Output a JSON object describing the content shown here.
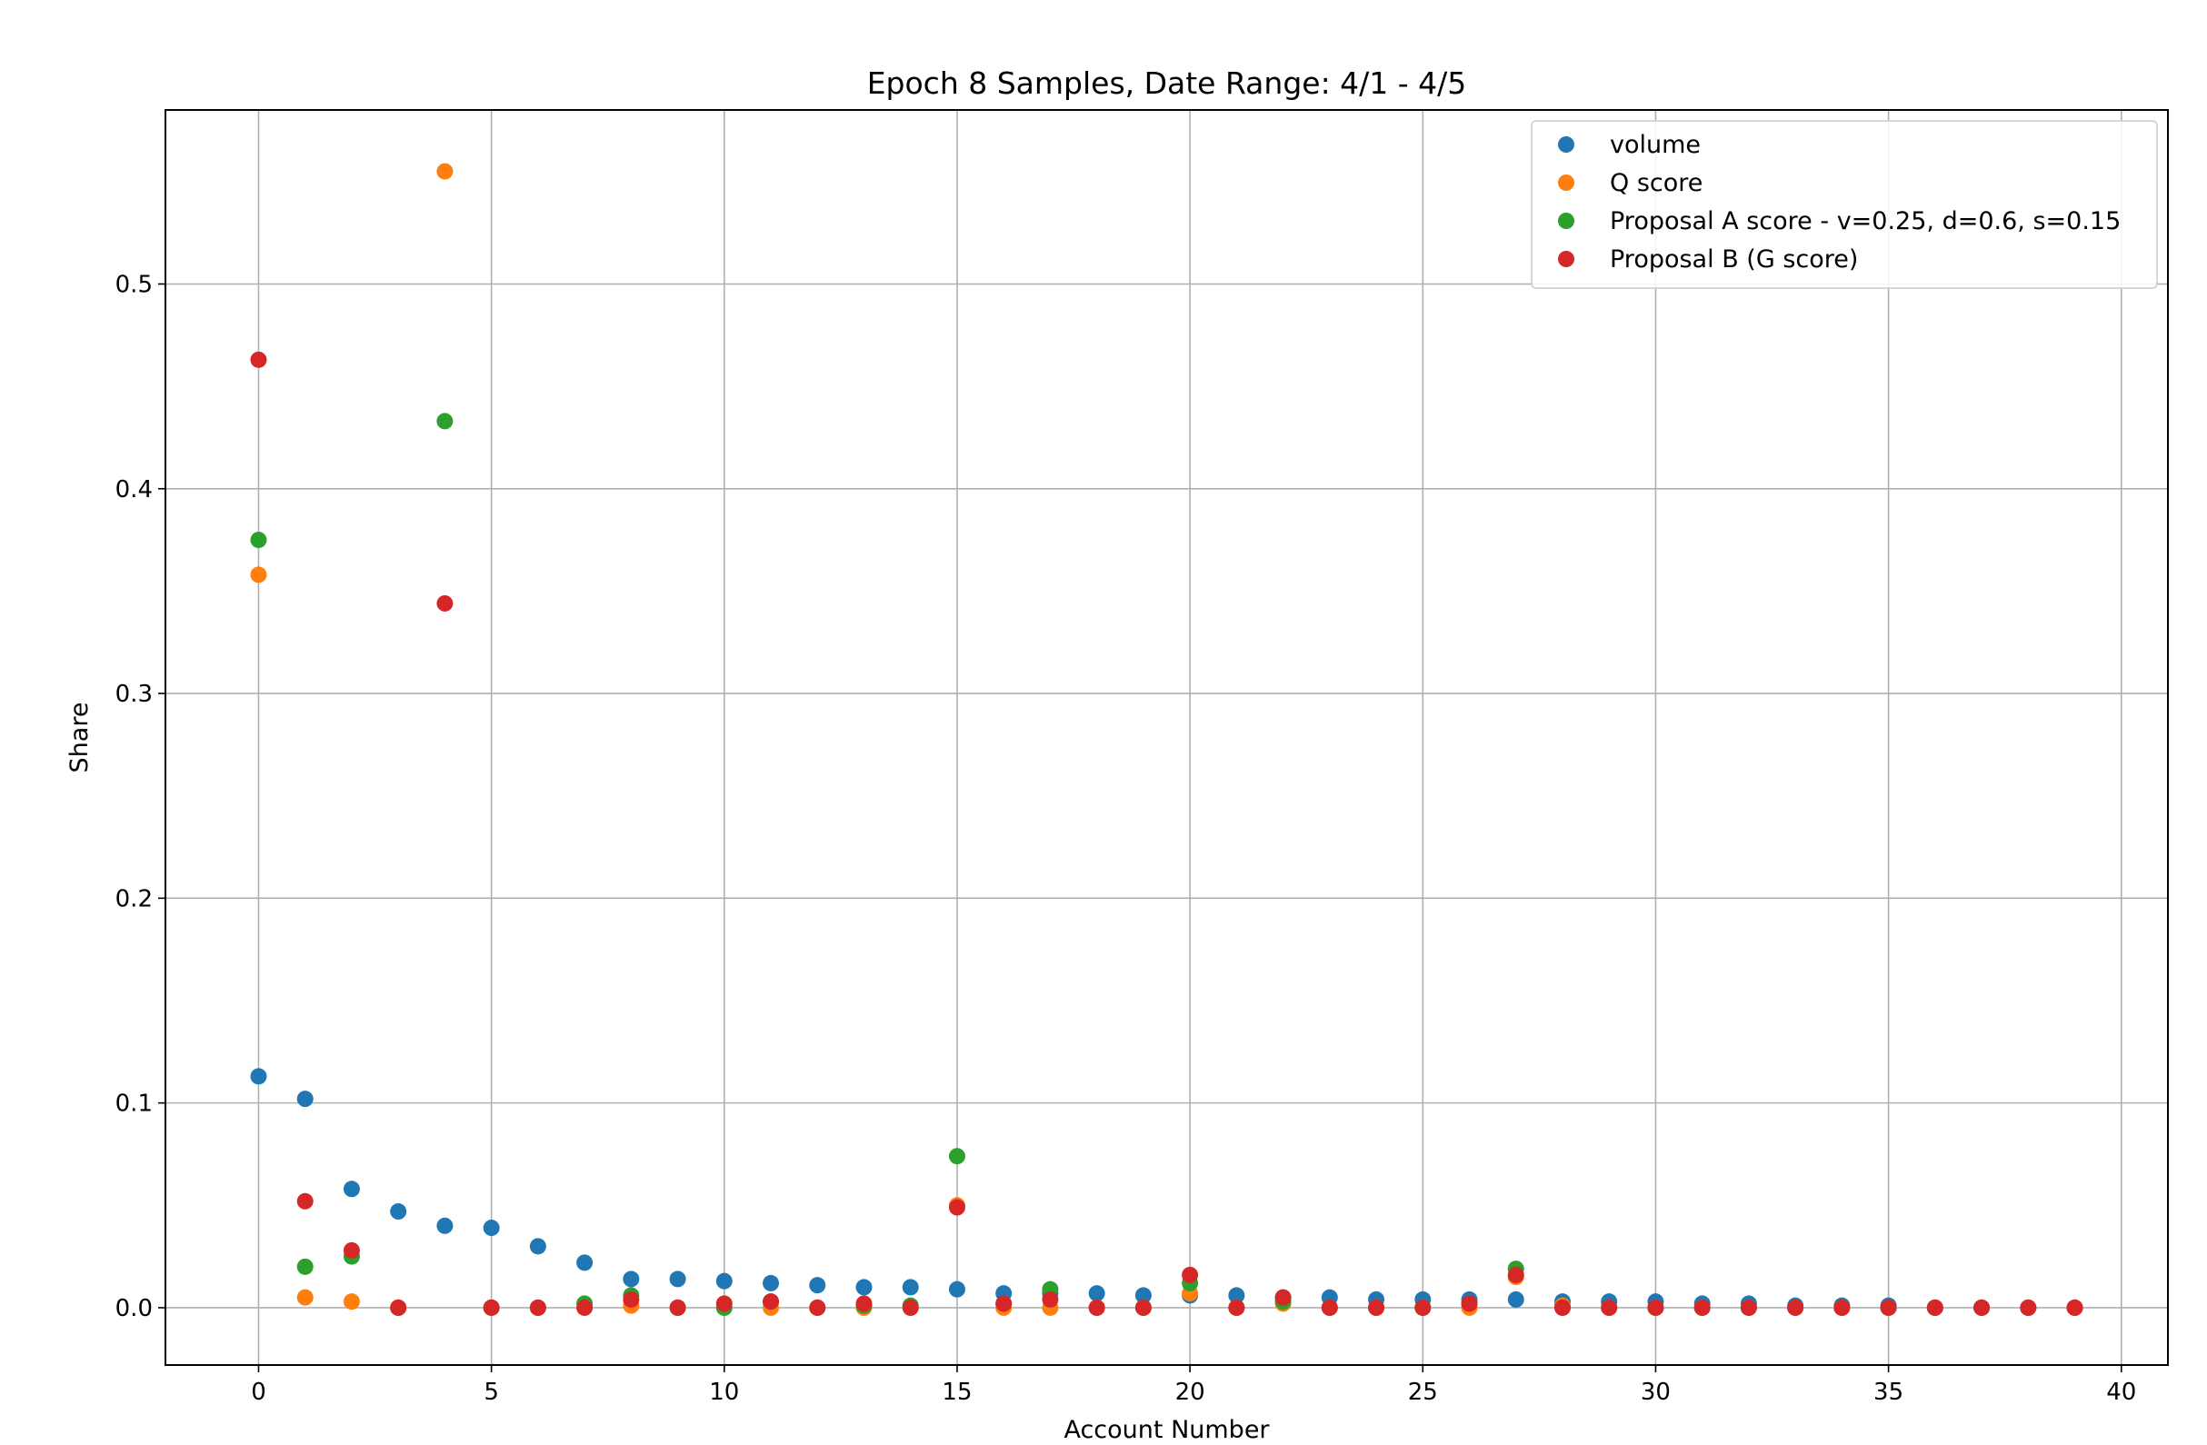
{
  "chart_data": {
    "type": "scatter",
    "title": "Epoch 8 Samples, Date Range: 4/1 - 4/5",
    "xlabel": "Account Number",
    "ylabel": "Share",
    "xlim": [
      -2,
      41
    ],
    "ylim": [
      -0.028,
      0.585
    ],
    "xticks": [
      0,
      5,
      10,
      15,
      20,
      25,
      30,
      35,
      40
    ],
    "xtick_labels": [
      "0",
      "5",
      "10",
      "15",
      "20",
      "25",
      "30",
      "35",
      "40"
    ],
    "yticks": [
      0.0,
      0.1,
      0.2,
      0.3,
      0.4,
      0.5
    ],
    "ytick_labels": [
      "0.0",
      "0.1",
      "0.2",
      "0.3",
      "0.4",
      "0.5"
    ],
    "grid": true,
    "legend_position": "top-right",
    "x": [
      0,
      1,
      2,
      3,
      4,
      5,
      6,
      7,
      8,
      9,
      10,
      11,
      12,
      13,
      14,
      15,
      16,
      17,
      18,
      19,
      20,
      21,
      22,
      23,
      24,
      25,
      26,
      27,
      28,
      29,
      30,
      31,
      32,
      33,
      34,
      35,
      36,
      37,
      38,
      39
    ],
    "series": [
      {
        "name": "volume",
        "color": "#1f77b4",
        "values": [
          0.113,
          0.102,
          0.058,
          0.047,
          0.04,
          0.039,
          0.03,
          0.022,
          0.014,
          0.014,
          0.013,
          0.012,
          0.011,
          0.01,
          0.01,
          0.009,
          0.007,
          0.007,
          0.007,
          0.006,
          0.006,
          0.006,
          0.005,
          0.005,
          0.004,
          0.004,
          0.004,
          0.004,
          0.003,
          0.003,
          0.003,
          0.002,
          0.002,
          0.001,
          0.001,
          0.001,
          0.0,
          0.0,
          0.0,
          0.0
        ]
      },
      {
        "name": "Q score",
        "color": "#ff7f0e",
        "values": [
          0.358,
          0.005,
          0.003,
          0.0,
          0.555,
          0.0,
          0.0,
          0.0,
          0.001,
          0.0,
          0.0,
          0.0,
          0.0,
          0.0,
          0.0,
          0.05,
          0.0,
          0.0,
          0.0,
          0.0,
          0.007,
          0.0,
          0.002,
          0.0,
          0.0,
          0.0,
          0.0,
          0.015,
          0.001,
          0.0,
          0.0,
          0.0,
          0.0,
          0.0,
          0.0,
          0.0,
          0.0,
          0.0,
          0.0,
          0.0
        ]
      },
      {
        "name": "Proposal A score - v=0.25, d=0.6, s=0.15",
        "color": "#2ca02c",
        "values": [
          0.375,
          0.02,
          0.025,
          0.0,
          0.433,
          0.0,
          0.0,
          0.002,
          0.006,
          0.0,
          0.0,
          0.003,
          0.0,
          0.001,
          0.001,
          0.074,
          0.002,
          0.009,
          0.0,
          0.0,
          0.012,
          0.0,
          0.003,
          0.0,
          0.0,
          0.0,
          0.002,
          0.019,
          0.0,
          0.0,
          0.0,
          0.0,
          0.0,
          0.0,
          0.0,
          0.0,
          0.0,
          0.0,
          0.0,
          0.0
        ]
      },
      {
        "name": "Proposal B (G score)",
        "color": "#d62728",
        "values": [
          0.463,
          0.052,
          0.028,
          0.0,
          0.344,
          0.0,
          0.0,
          0.0,
          0.004,
          0.0,
          0.002,
          0.003,
          0.0,
          0.002,
          0.0,
          0.049,
          0.002,
          0.004,
          0.0,
          0.0,
          0.016,
          0.0,
          0.005,
          0.0,
          0.0,
          0.0,
          0.002,
          0.016,
          0.0,
          0.0,
          0.0,
          0.0,
          0.0,
          0.0,
          0.0,
          0.0,
          0.0,
          0.0,
          0.0,
          0.0
        ]
      }
    ]
  }
}
